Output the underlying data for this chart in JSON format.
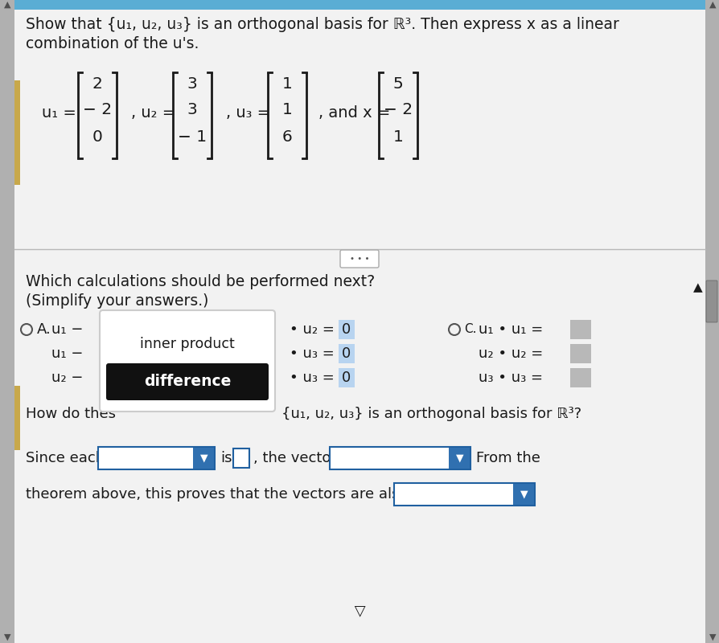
{
  "bg_color": "#ebebeb",
  "content_bg": "#f2f2f2",
  "header_bg": "#5aadd4",
  "title_line1": "Show that {u₁, u₂, u₃} is an orthogonal basis for ℝ³. Then express x as a linear",
  "title_line2": "combination of the u's.",
  "u1": [
    "2",
    "− 2",
    "0"
  ],
  "u2": [
    "3",
    "3",
    "− 1"
  ],
  "u3": [
    "1",
    "1",
    "6"
  ],
  "x_vec": [
    "5",
    "− 2",
    "1"
  ],
  "which_calc_line1": "Which calculations should be performed next?",
  "which_calc_line2": "(Simplify your answers.)",
  "inner_product_label": "inner product",
  "difference_label": "difference",
  "how_do_thes": "How do thes",
  "orthogonal_basis_text": "{u₁, u₂, u₃} is an orthogonal basis for ℝ³?",
  "since_each": "Since each",
  "from_the": "From the",
  "theorem_above": "theorem above, this proves that the vectors are also",
  "dots_color": "#555555",
  "zero_bg": "#b8d4f0",
  "box_bg_light": "#b8b8b8",
  "dropdown_border_color": "#2060a0",
  "dropdown_bg_color": "#3070b0",
  "white_popup_bg": "#ffffff",
  "black_popup_bg": "#111111",
  "scrollbar_gray": "#b0b0b0",
  "scrollbar_dark": "#888888",
  "left_accent_color": "#c8a84b",
  "right_accent_color": "#888888",
  "divider_color": "#b8b8b8",
  "text_color": "#1a1a1a"
}
